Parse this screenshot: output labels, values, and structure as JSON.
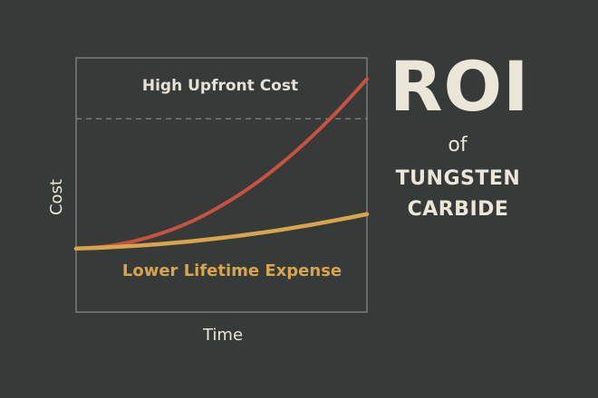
{
  "chart_data": {
    "type": "line",
    "xlabel": "Time",
    "ylabel": "Cost",
    "x": [
      0,
      1,
      2,
      3,
      4,
      5,
      6,
      7,
      8,
      9,
      10
    ],
    "series": [
      {
        "values": [
          0,
          0.4,
          1.4,
          3.0,
          5.2,
          8.1,
          11.6,
          15.8,
          20.6,
          26.0,
          32.0
        ],
        "color": "#c9513f"
      },
      {
        "values": [
          0,
          0.2,
          0.5,
          0.9,
          1.4,
          2.0,
          2.7,
          3.5,
          4.4,
          5.4,
          6.5
        ],
        "color": "#d8a44c"
      }
    ],
    "xlim": [
      0,
      10
    ],
    "ylim": [
      -12,
      36
    ],
    "reference_line": {
      "y": 24.5,
      "style": "dashed"
    },
    "annotations": [
      {
        "text": "High Upfront Cost",
        "color": "#e6e1d6"
      },
      {
        "text": "Lower Lifetime Expense",
        "color": "#d8a44c"
      }
    ],
    "grid": false,
    "legend": "none"
  },
  "title": {
    "main": "ROI",
    "connector": "of",
    "line1": "TUNGSTEN",
    "line2": "CARBIDE"
  },
  "colors": {
    "background": "#363a38",
    "frame": "#8a8d89",
    "text": "#ece6d8"
  }
}
